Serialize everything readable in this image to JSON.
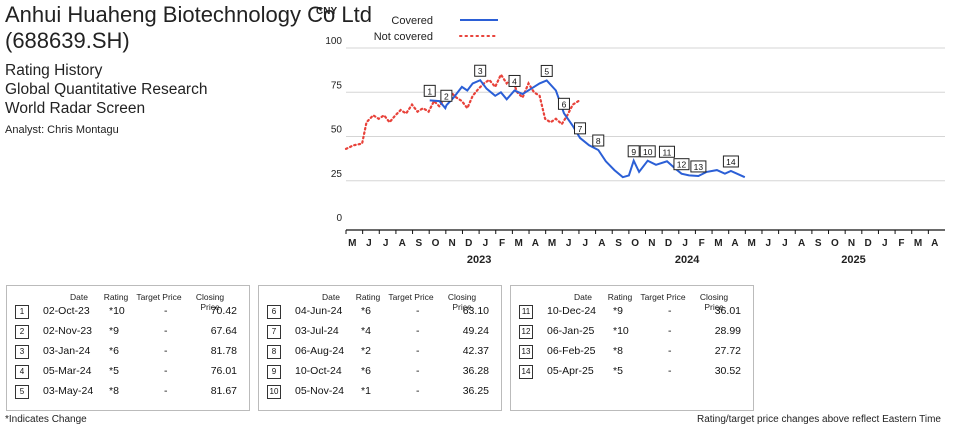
{
  "header": {
    "title_line1": "Anhui Huaheng Biotechnology Co Ltd",
    "title_line2": "(688639.SH)",
    "subtitle1": "Rating History",
    "subtitle2": "Global Quantitative Research",
    "subtitle3": "World Radar Screen",
    "analyst": "Analyst: Chris Montagu"
  },
  "chart_data": {
    "type": "line",
    "ylabel": "CNY",
    "ylim": [
      0,
      100
    ],
    "yticks": [
      0,
      25,
      50,
      75,
      100
    ],
    "x_months": [
      "M",
      "J",
      "J",
      "A",
      "S",
      "O",
      "N",
      "D",
      "J",
      "F",
      "M",
      "A",
      "M",
      "J",
      "J",
      "A",
      "S",
      "O",
      "N",
      "D",
      "J",
      "F",
      "M",
      "A",
      "M",
      "J",
      "J",
      "A",
      "S",
      "O",
      "N",
      "D",
      "J",
      "F",
      "M",
      "A"
    ],
    "x_years": [
      "2023",
      "2024",
      "2025"
    ],
    "legend": [
      {
        "name": "Covered",
        "color": "#2b5fd6",
        "style": "solid"
      },
      {
        "name": "Not covered",
        "color": "#e8423a",
        "style": "dotted"
      }
    ],
    "series": [
      {
        "name": "Not covered",
        "color": "#e8423a",
        "points": [
          [
            "2023-05-01",
            43
          ],
          [
            "2023-05-15",
            45
          ],
          [
            "2023-05-31",
            46
          ],
          [
            "2023-06-08",
            58
          ],
          [
            "2023-06-20",
            62
          ],
          [
            "2023-06-30",
            60
          ],
          [
            "2023-07-10",
            62
          ],
          [
            "2023-07-20",
            58
          ],
          [
            "2023-07-31",
            62
          ],
          [
            "2023-08-10",
            65
          ],
          [
            "2023-08-20",
            63
          ],
          [
            "2023-08-31",
            68
          ],
          [
            "2023-09-10",
            64
          ],
          [
            "2023-09-20",
            66
          ],
          [
            "2023-09-30",
            64
          ],
          [
            "2023-10-10",
            70
          ],
          [
            "2023-10-20",
            67
          ],
          [
            "2023-10-31",
            72
          ],
          [
            "2023-11-10",
            75
          ],
          [
            "2023-11-20",
            72
          ],
          [
            "2023-11-30",
            70
          ],
          [
            "2023-12-10",
            66
          ],
          [
            "2023-12-20",
            73
          ],
          [
            "2023-12-31",
            77
          ],
          [
            "2024-01-10",
            80
          ],
          [
            "2024-01-20",
            82
          ],
          [
            "2024-01-31",
            78
          ],
          [
            "2024-02-10",
            85
          ],
          [
            "2024-02-20",
            80
          ],
          [
            "2024-02-29",
            83
          ],
          [
            "2024-03-10",
            75
          ],
          [
            "2024-03-20",
            72
          ],
          [
            "2024-03-31",
            80
          ],
          [
            "2024-04-10",
            75
          ],
          [
            "2024-04-20",
            73
          ],
          [
            "2024-04-30",
            60
          ],
          [
            "2024-05-10",
            58
          ],
          [
            "2024-05-20",
            60
          ],
          [
            "2024-05-31",
            57
          ],
          [
            "2024-06-10",
            62
          ],
          [
            "2024-06-20",
            68
          ],
          [
            "2024-06-30",
            70
          ]
        ]
      },
      {
        "name": "Covered",
        "color": "#2b5fd6",
        "points": [
          [
            "2023-10-02",
            70.4
          ],
          [
            "2023-10-20",
            70
          ],
          [
            "2023-10-31",
            66
          ],
          [
            "2023-11-02",
            67.6
          ],
          [
            "2023-11-15",
            72
          ],
          [
            "2023-11-30",
            78
          ],
          [
            "2023-12-10",
            76
          ],
          [
            "2023-12-20",
            80
          ],
          [
            "2024-01-03",
            81.8
          ],
          [
            "2024-01-15",
            77
          ],
          [
            "2024-01-31",
            73
          ],
          [
            "2024-02-10",
            75
          ],
          [
            "2024-02-20",
            71
          ],
          [
            "2024-03-05",
            76
          ],
          [
            "2024-03-20",
            74
          ],
          [
            "2024-04-05",
            77
          ],
          [
            "2024-04-20",
            80
          ],
          [
            "2024-05-03",
            81.7
          ],
          [
            "2024-05-20",
            76
          ],
          [
            "2024-06-04",
            63.1
          ],
          [
            "2024-06-20",
            56
          ],
          [
            "2024-07-03",
            49.2
          ],
          [
            "2024-07-20",
            45
          ],
          [
            "2024-08-06",
            42.4
          ],
          [
            "2024-08-20",
            36
          ],
          [
            "2024-09-05",
            31
          ],
          [
            "2024-09-20",
            27
          ],
          [
            "2024-10-01",
            28
          ],
          [
            "2024-10-10",
            36.3
          ],
          [
            "2024-10-20",
            30
          ],
          [
            "2024-11-05",
            36.3
          ],
          [
            "2024-11-20",
            34
          ],
          [
            "2024-12-10",
            36
          ],
          [
            "2024-12-25",
            32
          ],
          [
            "2025-01-06",
            29
          ],
          [
            "2025-01-20",
            28
          ],
          [
            "2025-02-06",
            27.7
          ],
          [
            "2025-02-20",
            30
          ],
          [
            "2025-03-10",
            31
          ],
          [
            "2025-03-25",
            29
          ],
          [
            "2025-04-05",
            30.5
          ],
          [
            "2025-04-30",
            27
          ]
        ]
      }
    ],
    "markers": [
      {
        "label": "1",
        "date": "2023-10-02",
        "value": 70.42
      },
      {
        "label": "2",
        "date": "2023-11-02",
        "value": 67.64
      },
      {
        "label": "3",
        "date": "2024-01-03",
        "value": 81.78
      },
      {
        "label": "4",
        "date": "2024-03-05",
        "value": 76.01
      },
      {
        "label": "5",
        "date": "2024-05-03",
        "value": 81.67
      },
      {
        "label": "6",
        "date": "2024-06-04",
        "value": 63.1
      },
      {
        "label": "7",
        "date": "2024-07-03",
        "value": 49.24
      },
      {
        "label": "8",
        "date": "2024-08-06",
        "value": 42.37
      },
      {
        "label": "9",
        "date": "2024-10-10",
        "value": 36.28
      },
      {
        "label": "10",
        "date": "2024-11-05",
        "value": 36.25
      },
      {
        "label": "11",
        "date": "2024-12-10",
        "value": 36.01
      },
      {
        "label": "12",
        "date": "2025-01-06",
        "value": 28.99
      },
      {
        "label": "13",
        "date": "2025-02-06",
        "value": 27.72
      },
      {
        "label": "14",
        "date": "2025-04-05",
        "value": 30.52
      }
    ]
  },
  "table_headers": {
    "date": "Date",
    "rating": "Rating",
    "target": "Target Price",
    "closing": "Closing Price"
  },
  "tables": [
    [
      {
        "n": "1",
        "date": "02-Oct-23",
        "rating": "*10",
        "target": "-",
        "close": "70.42"
      },
      {
        "n": "2",
        "date": "02-Nov-23",
        "rating": "*9",
        "target": "-",
        "close": "67.64"
      },
      {
        "n": "3",
        "date": "03-Jan-24",
        "rating": "*6",
        "target": "-",
        "close": "81.78"
      },
      {
        "n": "4",
        "date": "05-Mar-24",
        "rating": "*5",
        "target": "-",
        "close": "76.01"
      },
      {
        "n": "5",
        "date": "03-May-24",
        "rating": "*8",
        "target": "-",
        "close": "81.67"
      }
    ],
    [
      {
        "n": "6",
        "date": "04-Jun-24",
        "rating": "*6",
        "target": "-",
        "close": "63.10"
      },
      {
        "n": "7",
        "date": "03-Jul-24",
        "rating": "*4",
        "target": "-",
        "close": "49.24"
      },
      {
        "n": "8",
        "date": "06-Aug-24",
        "rating": "*2",
        "target": "-",
        "close": "42.37"
      },
      {
        "n": "9",
        "date": "10-Oct-24",
        "rating": "*6",
        "target": "-",
        "close": "36.28"
      },
      {
        "n": "10",
        "date": "05-Nov-24",
        "rating": "*1",
        "target": "-",
        "close": "36.25"
      }
    ],
    [
      {
        "n": "11",
        "date": "10-Dec-24",
        "rating": "*9",
        "target": "-",
        "close": "36.01"
      },
      {
        "n": "12",
        "date": "06-Jan-25",
        "rating": "*10",
        "target": "-",
        "close": "28.99"
      },
      {
        "n": "13",
        "date": "06-Feb-25",
        "rating": "*8",
        "target": "-",
        "close": "27.72"
      },
      {
        "n": "14",
        "date": "05-Apr-25",
        "rating": "*5",
        "target": "-",
        "close": "30.52"
      }
    ]
  ],
  "footer": {
    "left": "*Indicates Change",
    "right": "Rating/target price changes above reflect Eastern Time"
  }
}
